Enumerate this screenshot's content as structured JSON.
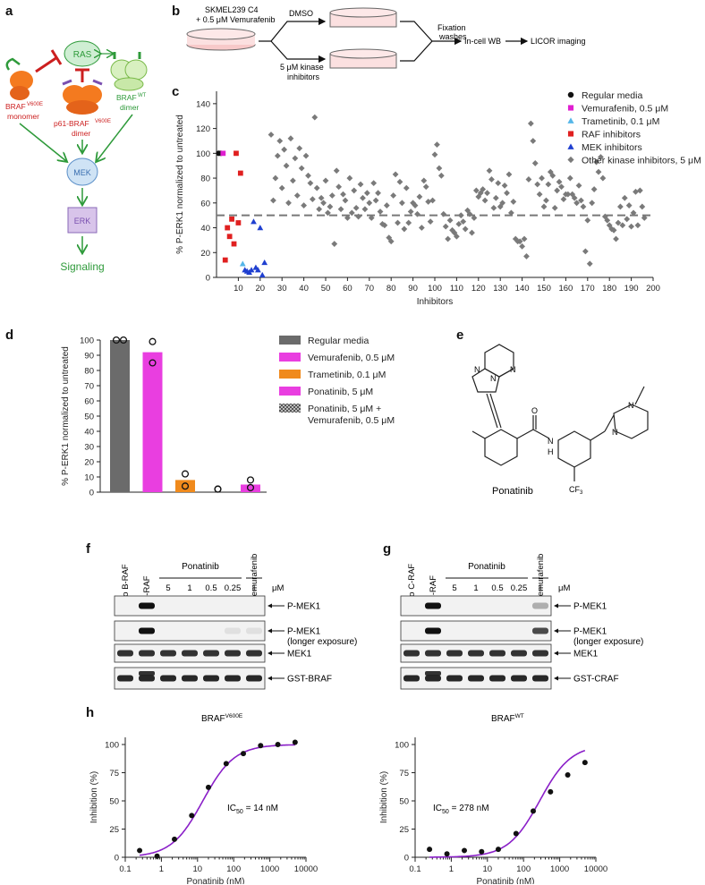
{
  "panel_labels": {
    "a": "a",
    "b": "b",
    "c": "c",
    "d": "d",
    "e": "e",
    "f": "f",
    "g": "g",
    "h": "h"
  },
  "panel_a": {
    "ras": "RAS",
    "braf_v600e_monomer": "BRAF",
    "braf_v600e_sup": "V600E",
    "monomer": "monomer",
    "p61": "p61-BRAF",
    "p61_sup": "V600E",
    "dimer": "dimer",
    "braf_wt": "BRAF",
    "braf_wt_sup": "WT",
    "wt_dimer": "dimer",
    "mek": "MEK",
    "erk": "ERK",
    "signaling": "Signaling",
    "colors": {
      "green": "#2e9a3a",
      "red": "#cc1f1f",
      "purple": "#7a4fb0",
      "mek_fill": "#cfe3f5",
      "erk_fill": "#d8c4ea",
      "ras_fill": "#cfeed3"
    }
  },
  "panel_b": {
    "cells_line1": "SKMEL239 C4",
    "cells_line2": "+ 0.5 μM Vemurafenib",
    "dmso": "DMSO",
    "kinase_line1": "5 μM kinase",
    "kinase_line2": "inhibitors",
    "fix_line1": "Fixation",
    "fix_line2": "washes",
    "wb": "In-cell WB",
    "licor": "LICOR imaging"
  },
  "chart_c": {
    "type": "scatter",
    "ylabel": "% P-ERK1 normalized to untreated",
    "xlabel": "Inhibitors",
    "xlim": [
      0,
      200
    ],
    "ylim": [
      0,
      150
    ],
    "xticks": [
      10,
      20,
      30,
      40,
      50,
      60,
      70,
      80,
      90,
      100,
      110,
      120,
      130,
      140,
      150,
      160,
      170,
      180,
      190,
      200
    ],
    "yticks": [
      0,
      20,
      40,
      60,
      80,
      100,
      120,
      140
    ],
    "threshold": 50,
    "legend": [
      {
        "name": "Regular media",
        "color": "#111111",
        "shape": "circle"
      },
      {
        "name": "Vemurafenib, 0.5 μM",
        "color": "#e01fd0",
        "shape": "square"
      },
      {
        "name": "Trametinib, 0.1 μM",
        "color": "#55b6e8",
        "shape": "triangle"
      },
      {
        "name": "RAF inhibitors",
        "color": "#e02020",
        "shape": "square"
      },
      {
        "name": "MEK inhibitors",
        "color": "#1f3fd0",
        "shape": "triangle"
      },
      {
        "name": "Other kinase inhibitors, 5 μM",
        "color": "#7a7a7a",
        "shape": "diamond"
      }
    ],
    "series": [
      {
        "name": "Regular media",
        "points": [
          [
            1,
            100
          ],
          [
            2,
            100
          ]
        ]
      },
      {
        "name": "Vemurafenib, 0.5 μM",
        "points": [
          [
            3,
            100
          ]
        ]
      },
      {
        "name": "Trametinib, 0.1 μM",
        "points": [
          [
            12,
            11
          ]
        ]
      },
      {
        "name": "RAF inhibitors",
        "points": [
          [
            4,
            14
          ],
          [
            5,
            40
          ],
          [
            6,
            33
          ],
          [
            7,
            47
          ],
          [
            8,
            27
          ],
          [
            9,
            100
          ],
          [
            10,
            44
          ],
          [
            11,
            84
          ]
        ]
      },
      {
        "name": "MEK inhibitors",
        "points": [
          [
            13,
            6
          ],
          [
            14,
            5
          ],
          [
            15,
            4
          ],
          [
            16,
            6
          ],
          [
            17,
            45
          ],
          [
            18,
            8
          ],
          [
            19,
            6
          ],
          [
            20,
            40
          ],
          [
            21,
            2
          ],
          [
            22,
            12
          ]
        ]
      },
      {
        "name": "Other kinase inhibitors, 5 μM",
        "points": [
          [
            25,
            115
          ],
          [
            26,
            62
          ],
          [
            27,
            80
          ],
          [
            28,
            98
          ],
          [
            29,
            110
          ],
          [
            30,
            72
          ],
          [
            31,
            103
          ],
          [
            32,
            90
          ],
          [
            33,
            60
          ],
          [
            34,
            112
          ],
          [
            35,
            78
          ],
          [
            36,
            96
          ],
          [
            37,
            66
          ],
          [
            38,
            104
          ],
          [
            39,
            88
          ],
          [
            40,
            58
          ],
          [
            41,
            98
          ],
          [
            42,
            82
          ],
          [
            43,
            76
          ],
          [
            44,
            63
          ],
          [
            45,
            129
          ],
          [
            46,
            72
          ],
          [
            47,
            55
          ],
          [
            48,
            64
          ],
          [
            49,
            60
          ],
          [
            50,
            78
          ],
          [
            51,
            52
          ],
          [
            52,
            57
          ],
          [
            53,
            66
          ],
          [
            54,
            27
          ],
          [
            55,
            86
          ],
          [
            56,
            73
          ],
          [
            57,
            55
          ],
          [
            58,
            67
          ],
          [
            59,
            62
          ],
          [
            60,
            48
          ],
          [
            61,
            80
          ],
          [
            62,
            52
          ],
          [
            63,
            70
          ],
          [
            64,
            56
          ],
          [
            65,
            49
          ],
          [
            66,
            75
          ],
          [
            67,
            64
          ],
          [
            68,
            55
          ],
          [
            69,
            68
          ],
          [
            70,
            60
          ],
          [
            71,
            48
          ],
          [
            72,
            76
          ],
          [
            73,
            62
          ],
          [
            74,
            68
          ],
          [
            75,
            53
          ],
          [
            76,
            43
          ],
          [
            77,
            42
          ],
          [
            78,
            58
          ],
          [
            79,
            32
          ],
          [
            80,
            29
          ],
          [
            81,
            66
          ],
          [
            82,
            83
          ],
          [
            83,
            44
          ],
          [
            84,
            77
          ],
          [
            85,
            60
          ],
          [
            86,
            39
          ],
          [
            87,
            72
          ],
          [
            88,
            44
          ],
          [
            89,
            53
          ],
          [
            90,
            60
          ],
          [
            91,
            58
          ],
          [
            92,
            51
          ],
          [
            93,
            65
          ],
          [
            94,
            40
          ],
          [
            95,
            78
          ],
          [
            96,
            73
          ],
          [
            97,
            61
          ],
          [
            98,
            45
          ],
          [
            99,
            62
          ],
          [
            100,
            99
          ],
          [
            101,
            107
          ],
          [
            102,
            88
          ],
          [
            103,
            82
          ],
          [
            104,
            51
          ],
          [
            105,
            41
          ],
          [
            106,
            31
          ],
          [
            107,
            46
          ],
          [
            108,
            38
          ],
          [
            109,
            36
          ],
          [
            110,
            33
          ],
          [
            111,
            43
          ],
          [
            112,
            50
          ],
          [
            113,
            45
          ],
          [
            114,
            39
          ],
          [
            115,
            54
          ],
          [
            116,
            51
          ],
          [
            117,
            36
          ],
          [
            118,
            48
          ],
          [
            119,
            70
          ],
          [
            120,
            65
          ],
          [
            121,
            68
          ],
          [
            122,
            71
          ],
          [
            123,
            62
          ],
          [
            124,
            68
          ],
          [
            125,
            86
          ],
          [
            126,
            79
          ],
          [
            127,
            56
          ],
          [
            128,
            64
          ],
          [
            129,
            76
          ],
          [
            130,
            57
          ],
          [
            131,
            60
          ],
          [
            132,
            74
          ],
          [
            133,
            68
          ],
          [
            134,
            83
          ],
          [
            135,
            52
          ],
          [
            136,
            61
          ],
          [
            137,
            31
          ],
          [
            138,
            29
          ],
          [
            139,
            29
          ],
          [
            140,
            25
          ],
          [
            141,
            31
          ],
          [
            142,
            17
          ],
          [
            143,
            79
          ],
          [
            144,
            124
          ],
          [
            145,
            110
          ],
          [
            146,
            92
          ],
          [
            147,
            75
          ],
          [
            148,
            67
          ],
          [
            149,
            80
          ],
          [
            150,
            57
          ],
          [
            151,
            62
          ],
          [
            152,
            75
          ],
          [
            153,
            85
          ],
          [
            154,
            82
          ],
          [
            155,
            56
          ],
          [
            156,
            70
          ],
          [
            157,
            77
          ],
          [
            158,
            73
          ],
          [
            159,
            63
          ],
          [
            160,
            67
          ],
          [
            161,
            67
          ],
          [
            162,
            80
          ],
          [
            163,
            67
          ],
          [
            164,
            64
          ],
          [
            165,
            60
          ],
          [
            166,
            74
          ],
          [
            167,
            62
          ],
          [
            168,
            57
          ],
          [
            169,
            21
          ],
          [
            170,
            46
          ],
          [
            171,
            11
          ],
          [
            172,
            60
          ],
          [
            173,
            71
          ],
          [
            174,
            93
          ],
          [
            175,
            85
          ],
          [
            176,
            97
          ],
          [
            177,
            80
          ],
          [
            178,
            49
          ],
          [
            179,
            46
          ],
          [
            180,
            42
          ],
          [
            181,
            39
          ],
          [
            182,
            38
          ],
          [
            183,
            31
          ],
          [
            184,
            44
          ],
          [
            185,
            57
          ],
          [
            186,
            42
          ],
          [
            187,
            64
          ],
          [
            188,
            47
          ],
          [
            189,
            58
          ],
          [
            190,
            41
          ],
          [
            191,
            52
          ],
          [
            192,
            69
          ],
          [
            193,
            42
          ],
          [
            194,
            70
          ],
          [
            195,
            57
          ],
          [
            196,
            48
          ]
        ]
      }
    ]
  },
  "chart_d": {
    "type": "bar",
    "ylabel": "% P-ERK1 normalized to untreated",
    "ylim": [
      0,
      100
    ],
    "yticks": [
      0,
      10,
      20,
      30,
      40,
      50,
      60,
      70,
      80,
      90,
      100
    ],
    "bars": [
      {
        "name": "Regular media",
        "value": 100,
        "color": "#6b6b6b",
        "points": [
          100,
          100
        ]
      },
      {
        "name": "Vemurafenib, 0.5 μM",
        "value": 92,
        "color": "#e93ee0",
        "points": [
          99,
          85
        ]
      },
      {
        "name": "Trametinib, 0.1 μM",
        "value": 8,
        "color": "#f08a1c",
        "points": [
          12,
          4
        ]
      },
      {
        "name": "Ponatinib, 5 μM",
        "value": 0,
        "color": "#e93ee0",
        "points": [
          2,
          2
        ]
      },
      {
        "name": "Ponatinib, 5 μM + Vemurafenib, 0.5 μM",
        "value": 5,
        "color": "#e93ee0",
        "points": [
          8,
          3
        ]
      }
    ],
    "legend": [
      {
        "line1": "Regular media",
        "line2": "",
        "color": "#6b6b6b",
        "pattern": false
      },
      {
        "line1": "Vemurafenib, 0.5 μM",
        "line2": "",
        "color": "#e93ee0",
        "pattern": false
      },
      {
        "line1": "Trametinib, 0.1 μM",
        "line2": "",
        "color": "#f08a1c",
        "pattern": false
      },
      {
        "line1": "Ponatinib, 5 μM",
        "line2": "",
        "color": "#e93ee0",
        "pattern": false
      },
      {
        "line1": "Ponatinib, 5 μM +",
        "line2": "Vemurafenib, 0.5 μM",
        "color": "#8a8a8a",
        "pattern": true
      }
    ]
  },
  "panel_e": {
    "name": "Ponatinib",
    "n1": "N",
    "n2": "N",
    "n3": "N",
    "o": "O",
    "nh_n": "N",
    "nh_h": "H",
    "pip_n1": "N",
    "pip_n2": "N",
    "cf3": "CF",
    "cf3_sub": "3"
  },
  "blot_f": {
    "lanes": [
      "no B-RAF",
      "B-RAF",
      "",
      "",
      "",
      "",
      ""
    ],
    "top_lanes": [
      "no B-RAF",
      "B-RAF"
    ],
    "vertical_last": "Vemurafenib",
    "ponatinib": "Ponatinib",
    "concs": [
      "5",
      "1",
      "0.5",
      "0.25",
      "1"
    ],
    "unit": "μM",
    "rows": [
      "P-MEK1",
      "P-MEK1",
      "MEK1",
      "GST-BRAF"
    ],
    "row2_sub": "(longer exposure)"
  },
  "blot_g": {
    "top_lanes": [
      "no C-RAF",
      "C-RAF"
    ],
    "vertical_last": "Vemurafenib",
    "ponatinib": "Ponatinib",
    "concs": [
      "5",
      "1",
      "0.5",
      "0.25",
      "1"
    ],
    "unit": "μM",
    "rows": [
      "P-MEK1",
      "P-MEK1",
      "MEK1",
      "GST-CRAF"
    ],
    "row2_sub": "(longer exposure)"
  },
  "chart_h": [
    {
      "type": "scatter",
      "title": "BRAF",
      "title_sup": "V600E",
      "xlabel": "Ponatinib (nM)",
      "ylabel": "Inhibition (%)",
      "xscale": "log",
      "xlim": [
        0.1,
        10000
      ],
      "xticks": [
        "0.1",
        "1",
        "10",
        "100",
        "1000",
        "10000"
      ],
      "ylim": [
        0,
        100
      ],
      "yticks": [
        0,
        25,
        50,
        75,
        100
      ],
      "annotation": "IC",
      "annotation_sub": "50",
      "annotation_rest": " = 14 nM",
      "ic50": 14,
      "hill": 1.0,
      "points": [
        [
          0.25,
          6
        ],
        [
          0.76,
          1
        ],
        [
          2.3,
          16
        ],
        [
          6.9,
          37
        ],
        [
          20,
          62
        ],
        [
          62,
          83
        ],
        [
          185,
          92
        ],
        [
          556,
          99
        ],
        [
          1667,
          100
        ],
        [
          5000,
          102
        ]
      ]
    },
    {
      "type": "scatter",
      "title": "BRAF",
      "title_sup": "WT",
      "xlabel": "Ponatinib (nM)",
      "ylabel": "Inhibition (%)",
      "xscale": "log",
      "xlim": [
        0.1,
        10000
      ],
      "xticks": [
        "0.1",
        "1",
        "10",
        "100",
        "1000",
        "10000"
      ],
      "ylim": [
        0,
        100
      ],
      "yticks": [
        0,
        25,
        50,
        75,
        100
      ],
      "annotation": "IC",
      "annotation_sub": "50",
      "annotation_rest": " = 278 nM",
      "ic50": 278,
      "hill": 1.0,
      "points": [
        [
          0.25,
          7
        ],
        [
          0.76,
          3
        ],
        [
          2.3,
          6
        ],
        [
          6.9,
          5
        ],
        [
          20,
          7
        ],
        [
          62,
          21
        ],
        [
          185,
          41
        ],
        [
          556,
          58
        ],
        [
          1667,
          73
        ],
        [
          5000,
          84
        ]
      ]
    }
  ]
}
